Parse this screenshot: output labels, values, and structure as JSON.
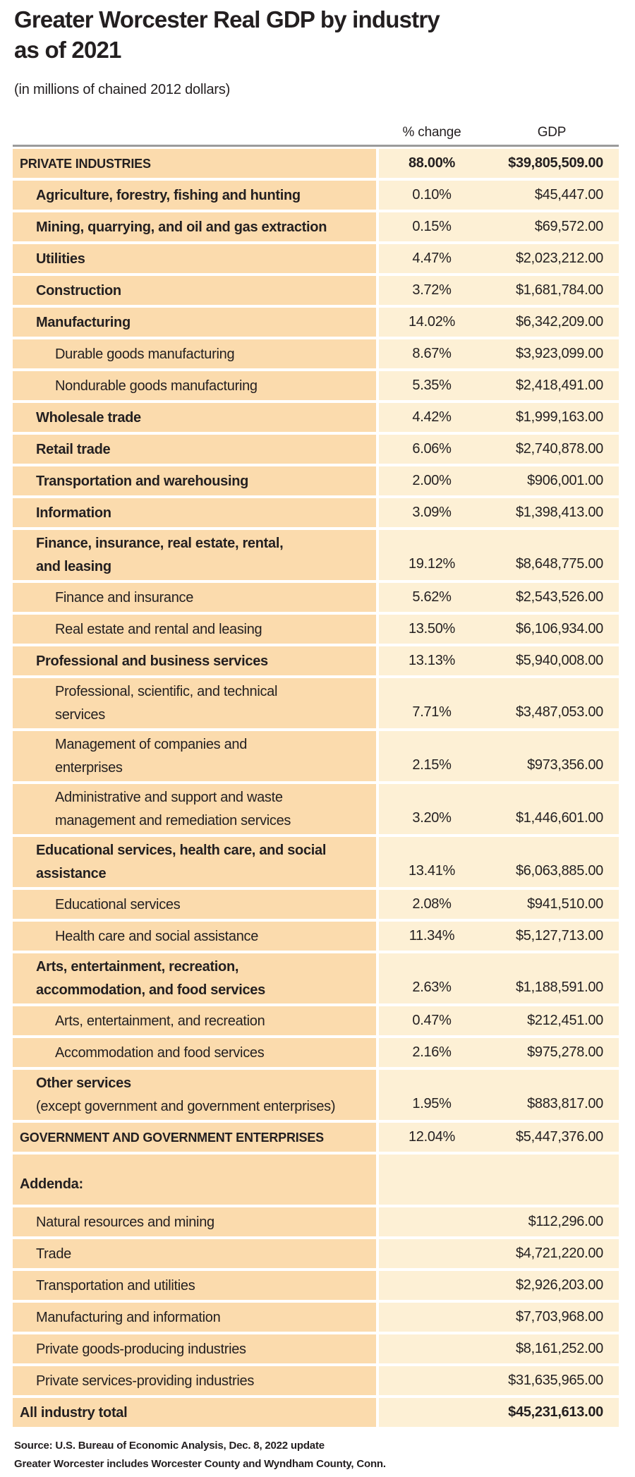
{
  "header": {
    "title_line1": "Greater Worcester Real GDP by industry",
    "title_line2": "as of 2021",
    "subtitle": "(in millions of chained 2012 dollars)"
  },
  "chart_data": {
    "type": "table",
    "title": "Greater Worcester Real GDP by industry as of 2021",
    "subtitle": "(in millions of chained 2012 dollars)",
    "columns": [
      "% change",
      "GDP"
    ],
    "rows": [
      {
        "label": "PRIVATE INDUSTRIES",
        "pct": "88.00%",
        "gdp": "$39,805,509.00",
        "indent": 0,
        "bold": true,
        "caps": true,
        "values_bold": true
      },
      {
        "label": "Agriculture, forestry, fishing and hunting",
        "pct": "0.10%",
        "gdp": "$45,447.00",
        "indent": 1,
        "bold": true
      },
      {
        "label": "Mining, quarrying, and oil and gas extraction",
        "pct": "0.15%",
        "gdp": "$69,572.00",
        "indent": 1,
        "bold": true
      },
      {
        "label": "Utilities",
        "pct": "4.47%",
        "gdp": "$2,023,212.00",
        "indent": 1,
        "bold": true
      },
      {
        "label": "Construction",
        "pct": "3.72%",
        "gdp": "$1,681,784.00",
        "indent": 1,
        "bold": true
      },
      {
        "label": "Manufacturing",
        "pct": "14.02%",
        "gdp": "$6,342,209.00",
        "indent": 1,
        "bold": true
      },
      {
        "label": "Durable goods manufacturing",
        "pct": "8.67%",
        "gdp": "$3,923,099.00",
        "indent": 2
      },
      {
        "label": "Nondurable goods manufacturing",
        "pct": "5.35%",
        "gdp": "$2,418,491.00",
        "indent": 2
      },
      {
        "label": "Wholesale trade",
        "pct": "4.42%",
        "gdp": "$1,999,163.00",
        "indent": 1,
        "bold": true
      },
      {
        "label": "Retail trade",
        "pct": "6.06%",
        "gdp": "$2,740,878.00",
        "indent": 1,
        "bold": true
      },
      {
        "label": "Transportation and warehousing",
        "pct": "2.00%",
        "gdp": "$906,001.00",
        "indent": 1,
        "bold": true
      },
      {
        "label": "Information",
        "pct": "3.09%",
        "gdp": "$1,398,413.00",
        "indent": 1,
        "bold": true
      },
      {
        "label": "Finance, insurance, real estate, rental,",
        "label2": "and leasing",
        "label2_bold": true,
        "pct": "19.12%",
        "gdp": "$8,648,775.00",
        "indent": 1,
        "bold": true
      },
      {
        "label": "Finance and insurance",
        "pct": "5.62%",
        "gdp": "$2,543,526.00",
        "indent": 2
      },
      {
        "label": "Real estate and rental and leasing",
        "pct": "13.50%",
        "gdp": "$6,106,934.00",
        "indent": 2
      },
      {
        "label": "Professional and business services",
        "pct": "13.13%",
        "gdp": "$5,940,008.00",
        "indent": 1,
        "bold": true
      },
      {
        "label": "Professional, scientific, and technical",
        "label2": "services",
        "pct": "7.71%",
        "gdp": "$3,487,053.00",
        "indent": 2
      },
      {
        "label": "Management of companies and",
        "label2": "enterprises",
        "pct": "2.15%",
        "gdp": "$973,356.00",
        "indent": 2
      },
      {
        "label": "Administrative and support and waste",
        "label2": "management and remediation services",
        "pct": "3.20%",
        "gdp": "$1,446,601.00",
        "indent": 2
      },
      {
        "label": "Educational services, health care, and social",
        "label2": "assistance",
        "label2_bold": true,
        "pct": "13.41%",
        "gdp": "$6,063,885.00",
        "indent": 1,
        "bold": true
      },
      {
        "label": "Educational services",
        "pct": "2.08%",
        "gdp": "$941,510.00",
        "indent": 2
      },
      {
        "label": "Health care and social assistance",
        "pct": "11.34%",
        "gdp": "$5,127,713.00",
        "indent": 2
      },
      {
        "label": "Arts, entertainment, recreation,",
        "label2": "accommodation, and food services",
        "label2_bold": true,
        "pct": "2.63%",
        "gdp": "$1,188,591.00",
        "indent": 1,
        "bold": true
      },
      {
        "label": "Arts, entertainment, and recreation",
        "pct": "0.47%",
        "gdp": "$212,451.00",
        "indent": 2
      },
      {
        "label": "Accommodation and food services",
        "pct": "2.16%",
        "gdp": "$975,278.00",
        "indent": 2
      },
      {
        "label": "Other services",
        "label2": "(except government and government enterprises)",
        "label2_bold": false,
        "pct": "1.95%",
        "gdp": "$883,817.00",
        "indent": 1,
        "bold": true
      },
      {
        "label": "GOVERNMENT AND GOVERNMENT ENTERPRISES",
        "pct": "12.04%",
        "gdp": "$5,447,376.00",
        "indent": 0,
        "bold": true,
        "caps": true
      },
      {
        "label": "Addenda:",
        "pct": "",
        "gdp": "",
        "indent": 0,
        "bold": true,
        "spacer": true
      },
      {
        "label": "Natural resources and mining",
        "pct": "",
        "gdp": "$112,296.00",
        "indent": 1
      },
      {
        "label": "Trade",
        "pct": "",
        "gdp": "$4,721,220.00",
        "indent": 1
      },
      {
        "label": "Transportation and utilities",
        "pct": "",
        "gdp": "$2,926,203.00",
        "indent": 1
      },
      {
        "label": "Manufacturing and information",
        "pct": "",
        "gdp": "$7,703,968.00",
        "indent": 1
      },
      {
        "label": "Private goods-producing industries",
        "pct": "",
        "gdp": "$8,161,252.00",
        "indent": 1
      },
      {
        "label": "Private services-providing industries",
        "pct": "",
        "gdp": "$31,635,965.00",
        "indent": 1
      },
      {
        "label": "All industry total",
        "pct": "",
        "gdp": "$45,231,613.00",
        "indent": 0,
        "bold": true,
        "values_bold": true
      }
    ]
  },
  "footer": {
    "source": "Source: U.S. Bureau of Economic Analysis, Dec. 8, 2022 update",
    "note": "Greater Worcester includes Worcester County and Wyndham County, Conn."
  },
  "colors": {
    "label_cell": "#fbdbad",
    "value_cell": "#fdf0d5",
    "top_border": "#9b9b9b",
    "text": "#231f20"
  }
}
